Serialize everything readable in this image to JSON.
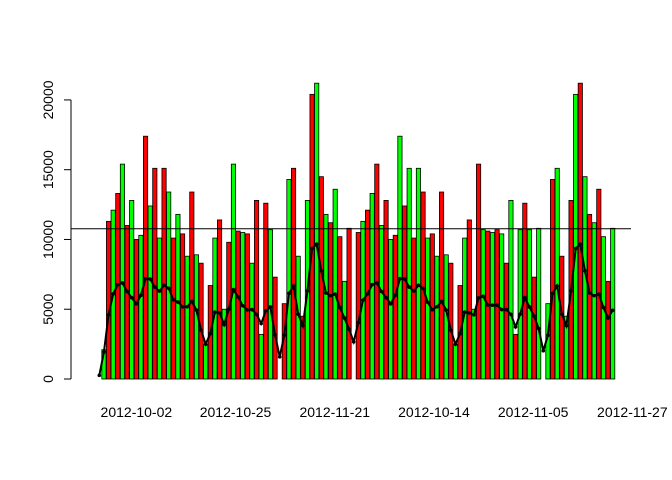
{
  "chart_data": {
    "type": "bar",
    "title": "",
    "xlabel": "",
    "ylabel": "",
    "ylim": [
      0,
      21500
    ],
    "y_ticks": [
      0,
      5000,
      10000,
      15000,
      20000
    ],
    "x_tick_labels": [
      "2012-10-02",
      "2012-10-25",
      "2012-11-21",
      "2012-10-14",
      "2012-11-05",
      "2012-11-27"
    ],
    "bar_colors": [
      "#ff0000",
      "#00ff00"
    ],
    "bar_border_color": "#000000",
    "reference_line": {
      "value": 10766
    },
    "trend_line_color": "#000000",
    "values": [
      0,
      2100,
      11300,
      12100,
      13300,
      15400,
      11000,
      12800,
      10000,
      10300,
      17400,
      12400,
      15100,
      10100,
      15100,
      13400,
      10100,
      11800,
      10400,
      8800,
      13400,
      8900,
      8300,
      2500,
      6700,
      10100,
      11400,
      5000,
      9800,
      15400,
      10600,
      10500,
      10400,
      8300,
      12800,
      3200,
      12600,
      10700,
      7300,
      0,
      5400,
      14300,
      15100,
      8800,
      4500,
      12800,
      20400,
      21200,
      14500,
      11800,
      11200,
      13600,
      10200,
      7000,
      10800,
      0,
      10500,
      11300,
      12100,
      13300,
      15400,
      11000,
      12800,
      10000,
      10300,
      17400,
      12400,
      15100,
      10100,
      15100,
      13400,
      10100,
      10400,
      8800,
      13400,
      8900,
      8300,
      2500,
      6700,
      10100,
      11400,
      5000,
      15400,
      10700,
      10600,
      10500,
      10700,
      10400,
      8300,
      12800,
      3200,
      10700,
      12600,
      10700,
      7300,
      10800,
      0,
      5400,
      14300,
      15100,
      8800,
      4500,
      12800,
      20400,
      21200,
      14500,
      11800,
      11200,
      13600,
      10200,
      7000,
      10800
    ]
  }
}
